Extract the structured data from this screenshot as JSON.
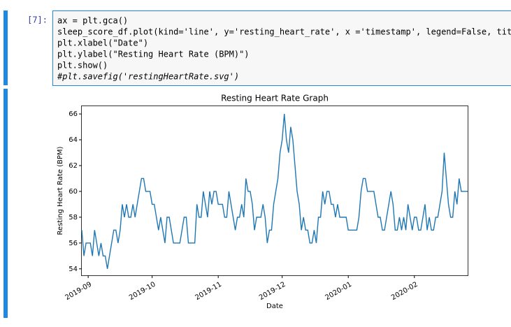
{
  "cell": {
    "prompt": "[7]:",
    "code": [
      "ax = plt.gca()",
      "sleep_score_df.plot(kind='line', y='resting_heart_rate', x ='timestamp', legend=False, title",
      "plt.xlabel(\"Date\")",
      "plt.ylabel(\"Resting Heart Rate (BPM)\")",
      "plt.show()",
      "#plt.savefig('restingHeartRate.svg')"
    ]
  },
  "chart_data": {
    "type": "line",
    "title": "Resting Heart Rate Graph",
    "xlabel": "Date",
    "ylabel": "Resting Heart Rate (BPM)",
    "color": "#1f77b4",
    "values": [
      57,
      55,
      56,
      56,
      56,
      55,
      57,
      56,
      55,
      56,
      55,
      55,
      54,
      55,
      56,
      57,
      57,
      56,
      57,
      59,
      58,
      59,
      58,
      58,
      59,
      58,
      59,
      60,
      61,
      61,
      60,
      60,
      60,
      59,
      59,
      58,
      57,
      58,
      57,
      56,
      58,
      58,
      57,
      56,
      56,
      56,
      56,
      57,
      58,
      58,
      56,
      56,
      56,
      56,
      59,
      58,
      58,
      60,
      59,
      58,
      60,
      59,
      60,
      60,
      59,
      59,
      59,
      58,
      58,
      60,
      59,
      58,
      57,
      58,
      58,
      59,
      58,
      61,
      60,
      60,
      59,
      57,
      58,
      58,
      58,
      59,
      58,
      56,
      57,
      57,
      59,
      60,
      61,
      63,
      64,
      66,
      64,
      63,
      65,
      64,
      62,
      60,
      59,
      57,
      58,
      57,
      57,
      56,
      56,
      57,
      56,
      58,
      58,
      60,
      59,
      60,
      60,
      59,
      59,
      58,
      59,
      58,
      58,
      58,
      58,
      57,
      57,
      57,
      57,
      57,
      58,
      60,
      61,
      61,
      60,
      60,
      60,
      60,
      59,
      58,
      58,
      57,
      57,
      58,
      59,
      60,
      59,
      57,
      57,
      58,
      57,
      58,
      57,
      59,
      58,
      57,
      58,
      58,
      57,
      57,
      58,
      59,
      57,
      58,
      57,
      57,
      58,
      58,
      59,
      60,
      63,
      61,
      59,
      58,
      58,
      60,
      59,
      61,
      60,
      60,
      60,
      60
    ],
    "xlim": [
      0,
      181
    ],
    "xticks": [
      {
        "value": 3,
        "label": "2019-09"
      },
      {
        "value": 33,
        "label": "2019-10"
      },
      {
        "value": 64,
        "label": "2019-11"
      },
      {
        "value": 94,
        "label": "2019-12"
      },
      {
        "value": 125,
        "label": "2020-01"
      },
      {
        "value": 156,
        "label": "2020-02"
      }
    ],
    "ylim": [
      53.5,
      66.6
    ],
    "yticks": [
      54,
      56,
      58,
      60,
      62,
      64,
      66
    ]
  }
}
